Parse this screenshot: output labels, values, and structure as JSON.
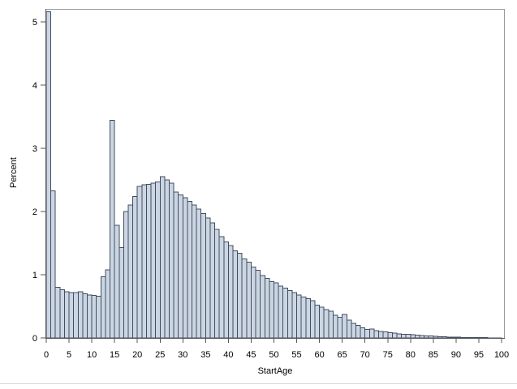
{
  "chart_data": {
    "type": "bar",
    "subtype": "histogram",
    "title": "",
    "xlabel": "StartAge",
    "ylabel": "Percent",
    "xlim": [
      0,
      100.7
    ],
    "ylim": [
      0,
      5.2
    ],
    "grid": "off",
    "legend": "none",
    "bin_start": 0,
    "bin_width": 1,
    "x_ticks": [
      0,
      5,
      10,
      15,
      20,
      25,
      30,
      35,
      40,
      45,
      50,
      55,
      60,
      65,
      70,
      75,
      80,
      85,
      90,
      95,
      100
    ],
    "y_ticks": [
      0,
      1,
      2,
      3,
      4,
      5
    ],
    "values": [
      5.16,
      2.33,
      0.8,
      0.76,
      0.73,
      0.72,
      0.72,
      0.73,
      0.7,
      0.68,
      0.67,
      0.66,
      0.97,
      1.08,
      3.44,
      1.78,
      1.43,
      2.0,
      2.1,
      2.24,
      2.4,
      2.42,
      2.43,
      2.45,
      2.47,
      2.55,
      2.5,
      2.45,
      2.31,
      2.26,
      2.22,
      2.16,
      2.1,
      2.04,
      1.97,
      1.9,
      1.82,
      1.72,
      1.6,
      1.52,
      1.46,
      1.38,
      1.34,
      1.25,
      1.2,
      1.12,
      1.07,
      0.99,
      0.94,
      0.89,
      0.87,
      0.82,
      0.79,
      0.75,
      0.72,
      0.68,
      0.65,
      0.62,
      0.59,
      0.52,
      0.49,
      0.45,
      0.42,
      0.36,
      0.33,
      0.37,
      0.28,
      0.23,
      0.2,
      0.16,
      0.135,
      0.14,
      0.115,
      0.105,
      0.095,
      0.085,
      0.075,
      0.065,
      0.06,
      0.055,
      0.05,
      0.042,
      0.038,
      0.033,
      0.03,
      0.026,
      0.022,
      0.018,
      0.015,
      0.013,
      0.011,
      0.009,
      0.008,
      0.007,
      0.006,
      0.005,
      0.004,
      0.003,
      0.0025,
      0.002
    ]
  },
  "styles": {
    "bar_fill": "#ccd6e3",
    "bar_stroke": "#414e61",
    "axis_color": "#565656",
    "frame_color": "#9a9a9a",
    "separator_color": "#d6d6d6",
    "text_color": "#000000",
    "background": "#ffffff"
  }
}
